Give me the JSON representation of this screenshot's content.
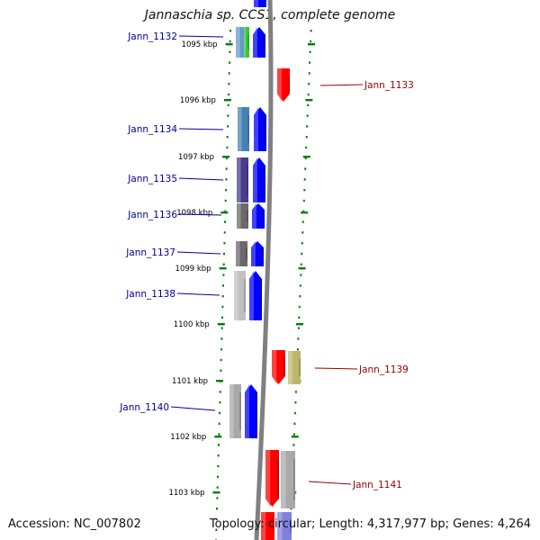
{
  "title": "Jannaschia sp. CCS1, complete genome",
  "footer": {
    "accession": "Accession: NC_007802",
    "topology": "Topology: circular; Length: 4,317,977 bp; Genes: 4,264"
  },
  "colors": {
    "forward": "#0000ff",
    "reverse": "#ff0000",
    "left_label": "#000099",
    "right_label": "#990000",
    "ruler": "#008000",
    "backbone": "#808080"
  },
  "ruler_labels": [
    "1095 kbp",
    "1096 kbp",
    "1097 kbp",
    "1098 kbp",
    "1099 kbp",
    "1100 kbp",
    "1101 kbp",
    "1102 kbp",
    "1103 kbp"
  ],
  "genes_left": [
    {
      "name": "Jann_1132",
      "strand": "forward",
      "color": "#6699cc"
    },
    {
      "name": "Jann_1134",
      "strand": "forward",
      "color": "#4682b4"
    },
    {
      "name": "Jann_1135",
      "strand": "forward",
      "color": "#483d8b"
    },
    {
      "name": "Jann_1136",
      "strand": "forward",
      "color": "#696969"
    },
    {
      "name": "Jann_1137",
      "strand": "forward",
      "color": "#696969"
    },
    {
      "name": "Jann_1138",
      "strand": "forward",
      "color": "#c0c0c0"
    },
    {
      "name": "Jann_1140",
      "strand": "forward",
      "color": "#a9a9a9"
    }
  ],
  "genes_right": [
    {
      "name": "Jann_1133",
      "strand": "reverse",
      "color": "#ff0000"
    },
    {
      "name": "Jann_1139",
      "strand": "reverse",
      "color": "#bdb76b"
    },
    {
      "name": "Jann_1141",
      "strand": "reverse",
      "color": "#a9a9a9"
    }
  ]
}
